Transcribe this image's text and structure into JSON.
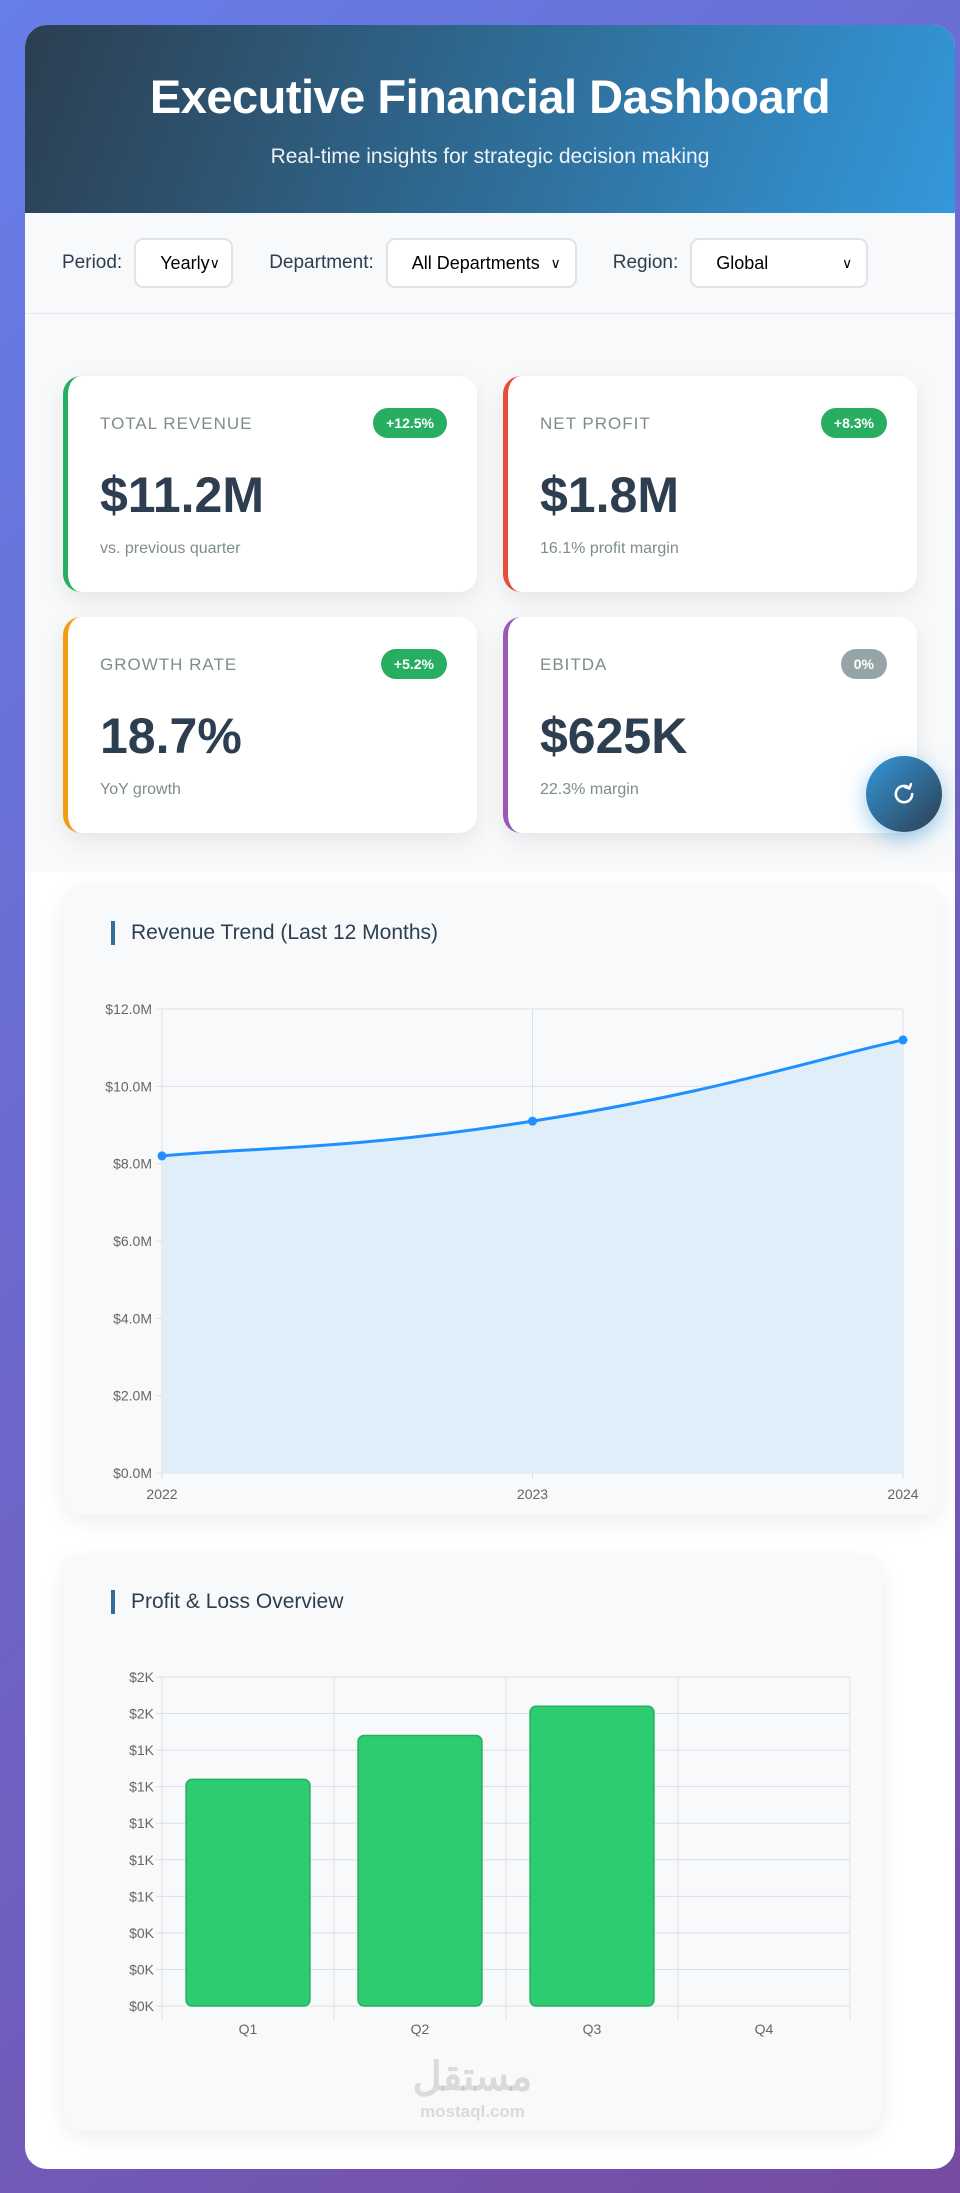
{
  "header": {
    "title": "Executive Financial Dashboard",
    "subtitle": "Real-time insights for strategic decision making"
  },
  "filters": [
    {
      "label": "Period:",
      "value": "Yearly"
    },
    {
      "label": "Department:",
      "value": "All Departments"
    },
    {
      "label": "Region:",
      "value": "Global"
    }
  ],
  "kpis": [
    {
      "title": "TOTAL REVENUE",
      "badge": "+12.5%",
      "value": "$11.2M",
      "sub": "vs. previous quarter",
      "accent": "#27ae60",
      "badge_color": "#27ae60"
    },
    {
      "title": "NET PROFIT",
      "badge": "+8.3%",
      "value": "$1.8M",
      "sub": "16.1% profit margin",
      "accent": "#e74c3c",
      "badge_color": "#27ae60"
    },
    {
      "title": "GROWTH RATE",
      "badge": "+5.2%",
      "value": "18.7%",
      "sub": "YoY growth",
      "accent": "#f39c12",
      "badge_color": "#27ae60"
    },
    {
      "title": "EBITDA",
      "badge": "0%",
      "value": "$625K",
      "sub": "22.3% margin",
      "accent": "#9b59b6",
      "badge_color": "#95a5a6"
    }
  ],
  "refresh_icon": "refresh-icon",
  "watermark": {
    "arabic": "مستقل",
    "latin": "mostaql.com"
  },
  "chart_data": [
    {
      "type": "area",
      "title": "Revenue Trend (Last 12 Months)",
      "x": [
        "2022",
        "2023",
        "2024"
      ],
      "values": [
        8.2,
        9.1,
        11.2
      ],
      "yticks": [
        "$0.0M",
        "$2.0M",
        "$4.0M",
        "$6.0M",
        "$8.0M",
        "$10.0M",
        "$12.0M"
      ],
      "ylim": [
        0,
        12
      ],
      "unit": "$M",
      "grid": true,
      "line_color": "#1e90ff",
      "fill_color": "#e0eefa"
    },
    {
      "type": "bar",
      "title": "Profit & Loss Overview",
      "categories": [
        "Q1",
        "Q2",
        "Q3",
        "Q4"
      ],
      "values": [
        1.24,
        1.48,
        1.64,
        null
      ],
      "yticks": [
        "$0K",
        "$0K",
        "$0K",
        "$1K",
        "$1K",
        "$1K",
        "$1K",
        "$1K",
        "$2K",
        "$2K"
      ],
      "ylim": [
        0,
        1.8
      ],
      "unit": "$K",
      "grid": true,
      "bar_color": "#2ecc71"
    }
  ]
}
